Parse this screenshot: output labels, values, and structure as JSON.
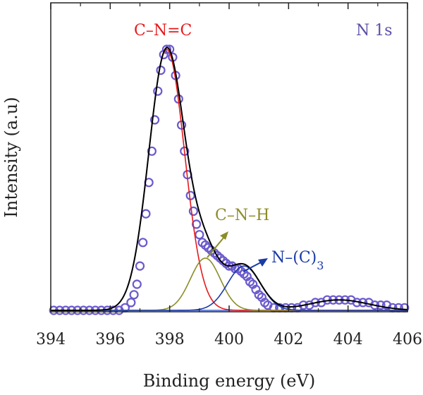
{
  "chart_data": {
    "type": "line",
    "xlabel": "Binding energy (eV)",
    "ylabel": "Intensity (a.u)",
    "xlim": [
      394,
      406
    ],
    "ylim": [
      0,
      100
    ],
    "x_ticks": [
      "394",
      "396",
      "398",
      "400",
      "402",
      "404",
      "406"
    ],
    "grid": false,
    "legend": "none",
    "annotations": {
      "panel_label": "N 1s",
      "peak1": "C–N=C",
      "peak2": "C–N–H",
      "peak3_main": "N–(C)",
      "peak3_sub": "3"
    },
    "colors": {
      "measured": "#6a5acd",
      "envelope": "#000000",
      "peak1": "#e8191c",
      "peak2": "#8c8c28",
      "peak3": "#1a3aa6",
      "baseline": "#3a5fcd",
      "panel_label": "#5b4fa5"
    },
    "components": [
      {
        "label_key": "peak1",
        "center": 397.9,
        "amplitude": 100,
        "sigma": 0.6
      },
      {
        "label_key": "peak2",
        "center": 399.2,
        "amplitude": 20,
        "sigma": 0.5
      },
      {
        "label_key": "peak3",
        "center": 400.5,
        "amplitude": 17,
        "sigma": 0.55
      },
      {
        "label_key": "none",
        "center": 403.7,
        "amplitude": 4,
        "sigma": 1.0
      }
    ],
    "measured_points": [
      [
        394.1,
        0
      ],
      [
        394.3,
        0
      ],
      [
        394.5,
        0
      ],
      [
        394.7,
        0
      ],
      [
        394.9,
        0
      ],
      [
        395.1,
        0
      ],
      [
        395.3,
        0
      ],
      [
        395.5,
        0
      ],
      [
        395.7,
        0
      ],
      [
        395.9,
        0
      ],
      [
        396.1,
        0
      ],
      [
        396.3,
        0
      ],
      [
        396.5,
        1
      ],
      [
        396.7,
        3
      ],
      [
        396.8,
        6
      ],
      [
        396.9,
        10
      ],
      [
        397.0,
        17
      ],
      [
        397.1,
        26
      ],
      [
        397.2,
        37
      ],
      [
        397.3,
        49
      ],
      [
        397.4,
        61
      ],
      [
        397.5,
        73
      ],
      [
        397.6,
        84
      ],
      [
        397.7,
        92
      ],
      [
        397.8,
        98
      ],
      [
        397.9,
        100
      ],
      [
        398.0,
        100
      ],
      [
        398.1,
        97
      ],
      [
        398.2,
        90
      ],
      [
        398.3,
        81
      ],
      [
        398.4,
        71
      ],
      [
        398.5,
        61
      ],
      [
        398.6,
        52
      ],
      [
        398.7,
        44
      ],
      [
        398.8,
        38
      ],
      [
        398.9,
        33
      ],
      [
        399.0,
        29
      ],
      [
        399.1,
        26
      ],
      [
        399.2,
        25
      ],
      [
        399.3,
        24
      ],
      [
        399.4,
        23
      ],
      [
        399.5,
        22
      ],
      [
        399.6,
        21
      ],
      [
        399.7,
        20
      ],
      [
        399.8,
        19
      ],
      [
        399.9,
        18
      ],
      [
        400.0,
        17
      ],
      [
        400.1,
        17
      ],
      [
        400.2,
        16
      ],
      [
        400.3,
        16
      ],
      [
        400.4,
        15
      ],
      [
        400.5,
        14
      ],
      [
        400.6,
        13
      ],
      [
        400.7,
        11
      ],
      [
        400.8,
        10
      ],
      [
        400.9,
        8
      ],
      [
        401.0,
        6
      ],
      [
        401.1,
        5
      ],
      [
        401.2,
        3
      ],
      [
        401.3,
        2
      ],
      [
        401.5,
        1
      ],
      [
        401.7,
        1
      ],
      [
        401.9,
        1
      ],
      [
        402.1,
        1
      ],
      [
        402.3,
        1
      ],
      [
        402.5,
        2
      ],
      [
        402.7,
        2
      ],
      [
        402.9,
        3
      ],
      [
        403.1,
        3
      ],
      [
        403.3,
        4
      ],
      [
        403.5,
        4
      ],
      [
        403.7,
        4
      ],
      [
        403.9,
        4
      ],
      [
        404.1,
        4
      ],
      [
        404.3,
        3
      ],
      [
        404.5,
        3
      ],
      [
        404.7,
        3
      ],
      [
        404.9,
        2
      ],
      [
        405.1,
        2
      ],
      [
        405.3,
        2
      ],
      [
        405.5,
        1
      ],
      [
        405.7,
        1
      ],
      [
        405.9,
        1
      ]
    ]
  }
}
